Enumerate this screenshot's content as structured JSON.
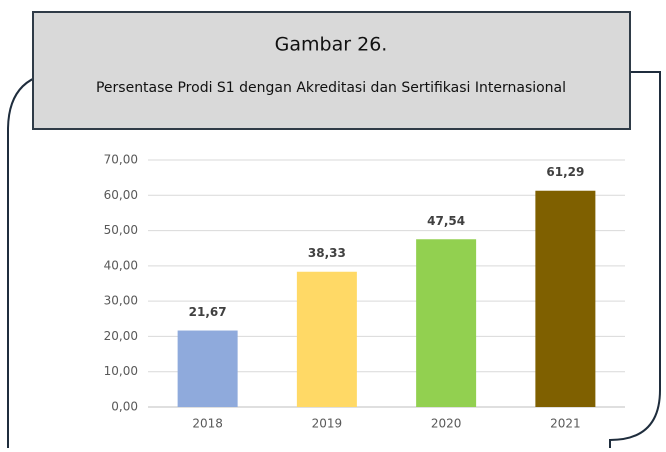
{
  "chart_data": {
    "type": "bar",
    "title": "Gambar 26.",
    "subtitle": "Persentase Prodi S1 dengan Akreditasi dan Sertifikasi Internasional",
    "categories": [
      "2018",
      "2019",
      "2020",
      "2021"
    ],
    "values": [
      21.67,
      38.33,
      47.54,
      61.29
    ],
    "value_labels": [
      "21,67",
      "38,33",
      "47,54",
      "61,29"
    ],
    "colors": [
      "#8faadc",
      "#ffd966",
      "#92d050",
      "#7f6000"
    ],
    "ylim": [
      0,
      70
    ],
    "yticks": [
      {
        "value": 0,
        "label": "0,00"
      },
      {
        "value": 10,
        "label": "10,00"
      },
      {
        "value": 20,
        "label": "20,00"
      },
      {
        "value": 30,
        "label": "30,00"
      },
      {
        "value": 40,
        "label": "40,00"
      },
      {
        "value": 50,
        "label": "50,00"
      },
      {
        "value": 60,
        "label": "60,00"
      },
      {
        "value": 70,
        "label": "70,00"
      }
    ],
    "grid": true
  }
}
